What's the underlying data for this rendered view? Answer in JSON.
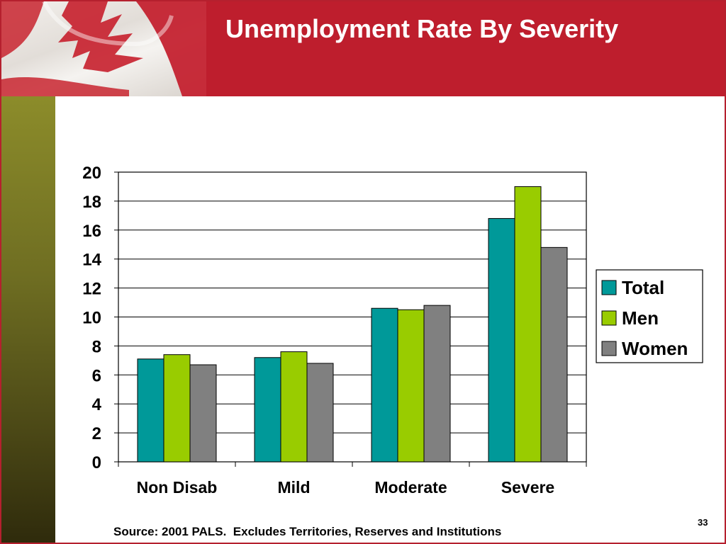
{
  "slide": {
    "title": "Unemployment Rate By Severity",
    "source": "Source: 2001 PALS.  Excludes Territories, Reserves and Institutions",
    "page_number": "33"
  },
  "colors": {
    "header": "#be1e2d",
    "total": "#009999",
    "men": "#99cc00",
    "women": "#808080"
  },
  "chart_data": {
    "type": "bar",
    "title": "",
    "xlabel": "",
    "ylabel": "",
    "categories": [
      "Non Disab",
      "Mild",
      "Moderate",
      "Severe"
    ],
    "series": [
      {
        "name": "Total",
        "color": "#009999",
        "values": [
          7.1,
          7.2,
          10.6,
          16.8
        ]
      },
      {
        "name": "Men",
        "color": "#99cc00",
        "values": [
          7.4,
          7.6,
          10.5,
          19.0
        ]
      },
      {
        "name": "Women",
        "color": "#808080",
        "values": [
          6.7,
          6.8,
          10.8,
          14.8
        ]
      }
    ],
    "ylim": [
      0,
      20
    ],
    "yticks": [
      0,
      2,
      4,
      6,
      8,
      10,
      12,
      14,
      16,
      18,
      20
    ],
    "grid": true,
    "legend": "right"
  }
}
